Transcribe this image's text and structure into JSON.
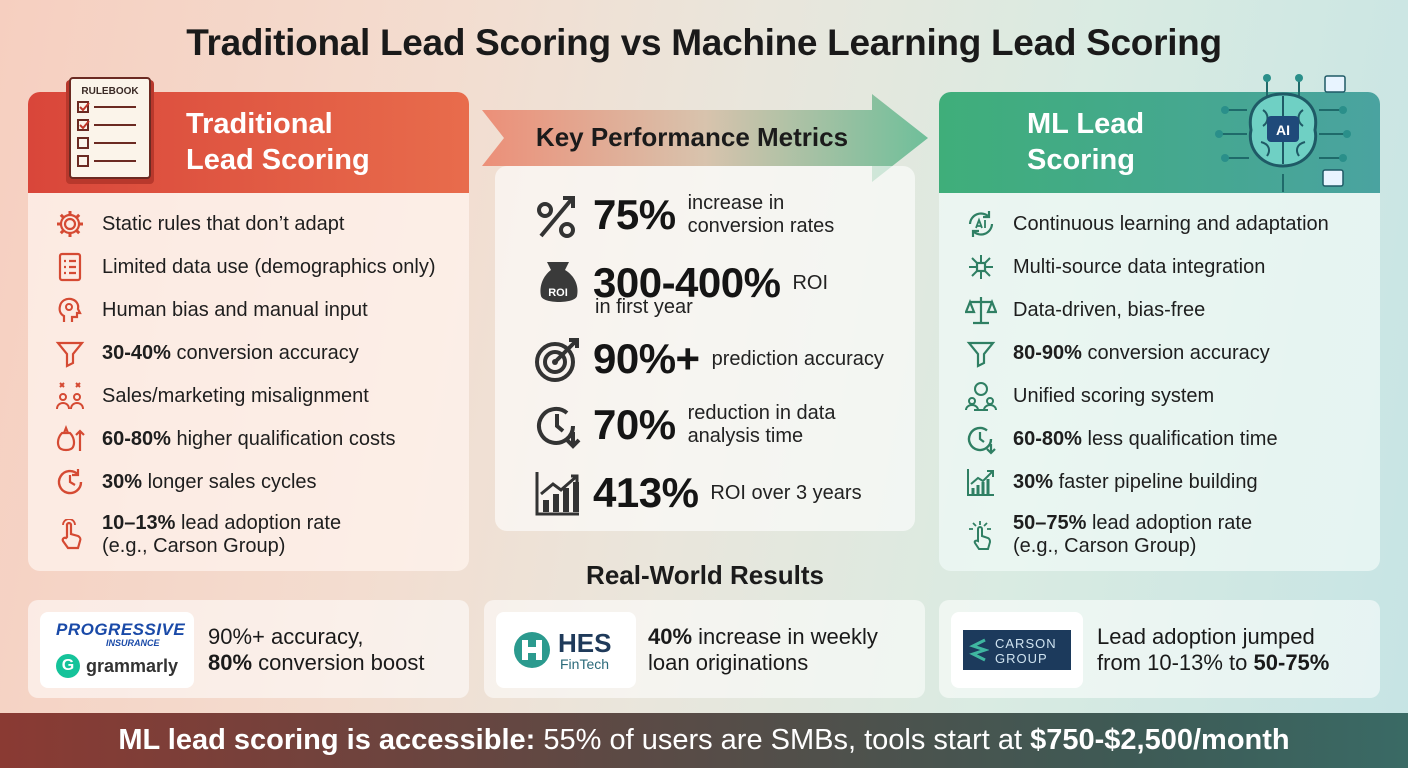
{
  "title": "Traditional Lead Scoring vs Machine Learning Lead Scoring",
  "left": {
    "title": "Traditional\nLead Scoring",
    "rulebook_label": "RULEBOOK",
    "items": [
      {
        "icon": "gear-icon",
        "bold": "",
        "text": "Static rules that don’t adapt"
      },
      {
        "icon": "list-icon",
        "bold": "",
        "text": "Limited data use (demographics only)"
      },
      {
        "icon": "head-icon",
        "bold": "",
        "text": "Human bias and manual input"
      },
      {
        "icon": "funnel-icon",
        "bold": "30-40%",
        "text": " conversion accuracy"
      },
      {
        "icon": "people-conflict-icon",
        "bold": "",
        "text": "Sales/marketing misalignment"
      },
      {
        "icon": "money-up-icon",
        "bold": "60-80%",
        "text": " higher qualification costs"
      },
      {
        "icon": "clock-icon",
        "bold": "30%",
        "text": " longer sales cycles"
      },
      {
        "icon": "hand-click-icon",
        "bold": "10–13%",
        "text": " lead adoption rate",
        "line2": "(e.g., Carson Group)"
      }
    ]
  },
  "middle": {
    "header": "Key Performance Metrics",
    "metrics": [
      {
        "icon": "percent-icon",
        "big": "75%",
        "small1": "increase in",
        "small2": "conversion rates"
      },
      {
        "icon": "roi-bag-icon",
        "big": "300-400%",
        "small1": "ROI",
        "sub": "in first year",
        "bag_label": "ROI"
      },
      {
        "icon": "target-icon",
        "big": "90%+",
        "small1": "prediction accuracy"
      },
      {
        "icon": "clock-down-icon",
        "big": "70%",
        "small1": "reduction in data",
        "small2": "analysis time"
      },
      {
        "icon": "bar-growth-icon",
        "big": "413%",
        "small1": "ROI over 3 years"
      }
    ],
    "results_title": "Real-World Results"
  },
  "right": {
    "title": "ML Lead\nScoring",
    "brain_label": "AI",
    "items": [
      {
        "icon": "ai-cycle-icon",
        "bold": "",
        "text": "Continuous learning and adaptation"
      },
      {
        "icon": "network-icon",
        "bold": "",
        "text": "Multi-source data integration"
      },
      {
        "icon": "scale-icon",
        "bold": "",
        "text": "Data-driven, bias-free"
      },
      {
        "icon": "funnel-icon",
        "bold": "80-90%",
        "text": " conversion accuracy"
      },
      {
        "icon": "unified-people-icon",
        "bold": "",
        "text": "Unified scoring system"
      },
      {
        "icon": "clock-down-icon",
        "bold": "60-80%",
        "text": " less qualification time"
      },
      {
        "icon": "growth-chart-icon",
        "bold": "30%",
        "text": " faster pipeline building"
      },
      {
        "icon": "hand-network-icon",
        "bold": "50–75%",
        "text": " lead adoption rate",
        "line2": "(e.g., Carson Group)"
      }
    ]
  },
  "results": [
    {
      "logo1": "PROGRESSIVE",
      "logo1_sub": "INSURANCE",
      "logo2": "grammarly",
      "line1": "90%+ accuracy,",
      "line2_bold": "80%",
      "line2": " conversion boost"
    },
    {
      "logo": "HES",
      "logo_sub": "FinTech",
      "line1_bold": "40%",
      "line1": " increase in weekly",
      "line2": "loan originations"
    },
    {
      "logo": "CARSON",
      "logo_sub": "GROUP",
      "line1": "Lead adoption jumped",
      "line2": "from 10-13% to ",
      "line2_bold": "50-75%"
    }
  ],
  "footer": {
    "bold1": "ML lead scoring is accessible:",
    "text1": " 55% of users are SMBs, tools start at ",
    "bold2": "$750-$2,500/month"
  },
  "colors": {
    "traditional": "#d9463a",
    "ml": "#3fae7a",
    "footer": "#5b4a45"
  }
}
